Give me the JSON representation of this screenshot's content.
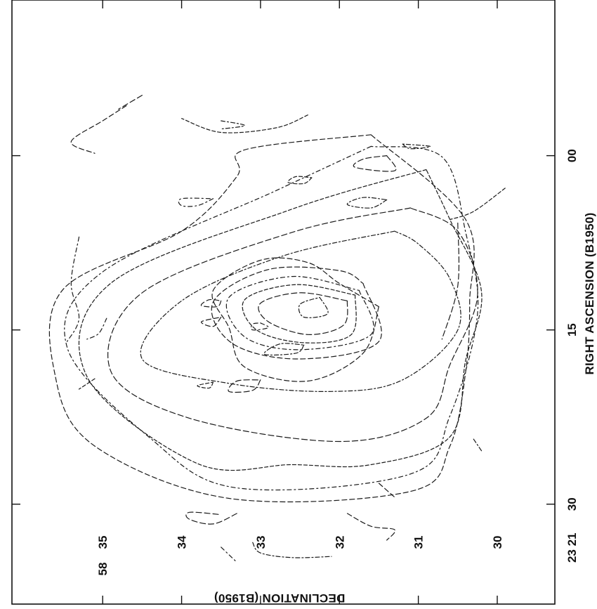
{
  "chart_data": {
    "type": "contour",
    "orientation": "rotated 90 degrees clockwise (x axis along right edge, y axis along bottom edge)",
    "xlabel": "RIGHT ASCENSION (B1950)",
    "ylabel": "DECLINATION (B1950)",
    "x_ticks": [
      {
        "value_s": 0,
        "label": "00",
        "prefix": ""
      },
      {
        "value_s": 15,
        "label": "15",
        "prefix": ""
      },
      {
        "value_s": 30,
        "label": "30",
        "prefix": "23 21"
      }
    ],
    "y_ticks": [
      {
        "value": 35,
        "label": "35",
        "prefix": "58"
      },
      {
        "value": 34,
        "label": "34",
        "prefix": ""
      },
      {
        "value": 33,
        "label": "33",
        "prefix": ""
      },
      {
        "value": 32,
        "label": "32",
        "prefix": ""
      },
      {
        "value": 31,
        "label": "31",
        "prefix": ""
      },
      {
        "value": 30,
        "label": "30",
        "prefix": ""
      }
    ],
    "xlim_s": [
      -13.4,
      38.6
    ],
    "ylim": [
      29.27,
      36.15
    ],
    "contour_style": "dashed",
    "peak": {
      "ra_s": 13,
      "dec": 32.3
    },
    "contours": [
      {
        "level": 1,
        "points": [
          [
            13,
            31.5
          ],
          [
            17,
            31.7
          ],
          [
            19.4,
            32.4
          ],
          [
            18.2,
            33.2
          ],
          [
            14.8,
            33.4
          ],
          [
            11.6,
            33.6
          ],
          [
            9,
            33
          ],
          [
            9.2,
            32.4
          ],
          [
            11,
            32
          ],
          [
            13,
            31.5
          ]
        ]
      },
      {
        "level": 1,
        "points": [
          [
            12.2,
            32.25
          ],
          [
            13.6,
            32.15
          ],
          [
            13.9,
            32.45
          ],
          [
            12.8,
            32.5
          ],
          [
            12.2,
            32.25
          ]
        ]
      },
      {
        "level": 1,
        "points": [
          [
            12.5,
            31.9
          ],
          [
            14.6,
            31.95
          ],
          [
            15.4,
            32.4
          ],
          [
            14.3,
            32.9
          ],
          [
            12.7,
            33.0
          ],
          [
            11.8,
            32.5
          ],
          [
            12.5,
            31.9
          ]
        ]
      },
      {
        "level": 1,
        "points": [
          [
            12,
            31.8
          ],
          [
            15.4,
            31.85
          ],
          [
            16.1,
            32.45
          ],
          [
            15.0,
            33.05
          ],
          [
            12.4,
            33.2
          ],
          [
            11.1,
            32.55
          ],
          [
            12,
            31.8
          ]
        ]
      },
      {
        "level": 1,
        "points": [
          [
            11.6,
            31.75
          ],
          [
            15.4,
            31.6
          ],
          [
            16.7,
            32.5
          ],
          [
            15.6,
            33.2
          ],
          [
            12.2,
            33.4
          ],
          [
            10.4,
            32.6
          ],
          [
            11.6,
            31.75
          ]
        ]
      },
      {
        "level": 1,
        "points": [
          [
            11,
            31.7
          ],
          [
            16,
            31.5
          ],
          [
            17.5,
            32.5
          ],
          [
            16.2,
            33.35
          ],
          [
            12.6,
            33.6
          ],
          [
            9.8,
            32.9
          ],
          [
            9.9,
            32.0
          ],
          [
            11,
            31.7
          ]
        ]
      },
      {
        "level": 1,
        "points": [
          [
            6.5,
            31.3
          ],
          [
            8.6,
            32.7
          ],
          [
            12.5,
            34
          ],
          [
            17.5,
            34.5
          ],
          [
            19.6,
            33.4
          ],
          [
            20.3,
            32.1
          ],
          [
            19.3,
            31.2
          ],
          [
            15.0,
            30.5
          ],
          [
            10.6,
            30.6
          ],
          [
            7.6,
            31.0
          ],
          [
            6.5,
            31.3
          ]
        ]
      },
      {
        "level": 1,
        "points": [
          [
            4.5,
            31.1
          ],
          [
            6.6,
            32.6
          ],
          [
            11.8,
            34.5
          ],
          [
            18.5,
            34.9
          ],
          [
            22.6,
            33.9
          ],
          [
            24.6,
            32.0
          ],
          [
            22.6,
            30.9
          ],
          [
            18.0,
            30.6
          ],
          [
            12,
            30.25
          ],
          [
            6.5,
            30.5
          ],
          [
            4.5,
            31.1
          ]
        ]
      },
      {
        "level": 1,
        "points": [
          [
            1.2,
            30.9
          ],
          [
            4.6,
            32.6
          ],
          [
            11,
            34.9
          ],
          [
            19,
            35.2
          ],
          [
            26.5,
            33.8
          ],
          [
            26.6,
            32.6
          ],
          [
            26.6,
            31.6
          ],
          [
            24.2,
            30.6
          ],
          [
            17.6,
            30.4
          ],
          [
            11.7,
            30.2
          ],
          [
            5.5,
            30.6
          ],
          [
            1.2,
            30.9
          ]
        ]
      },
      {
        "level": 1,
        "points": [
          [
            -0.8,
            31.6
          ],
          [
            3,
            32.8
          ],
          [
            10,
            35
          ],
          [
            16.5,
            35.45
          ],
          [
            24.3,
            34.4
          ],
          [
            28.6,
            33.3
          ],
          [
            27.4,
            31.1
          ],
          [
            22.4,
            30.6
          ],
          [
            13.6,
            30.25
          ],
          [
            6.6,
            30.4
          ],
          [
            0.1,
            30.7
          ],
          [
            -0.8,
            31.6
          ]
        ]
      },
      {
        "level": 1,
        "points": [
          [
            -1.8,
            31.6
          ],
          [
            -0.5,
            33.2
          ],
          [
            1.8,
            33.3
          ],
          [
            6.5,
            34
          ],
          [
            11.5,
            35.5
          ],
          [
            19,
            35.6
          ],
          [
            25,
            35.1
          ],
          [
            29.5,
            33.4
          ],
          [
            28.9,
            31.1
          ],
          [
            25,
            30.6
          ],
          [
            18.6,
            30.4
          ],
          [
            12.6,
            30.35
          ],
          [
            5.5,
            30.4
          ],
          [
            -1.8,
            31.6
          ]
        ]
      },
      {
        "level": 1,
        "points": [
          [
            3.8,
            31.4
          ],
          [
            4.5,
            31.6
          ],
          [
            4.2,
            31.9
          ],
          [
            3.6,
            31.7
          ],
          [
            3.8,
            31.4
          ]
        ]
      },
      {
        "level": 1,
        "points": [
          [
            0,
            31.4
          ],
          [
            1.3,
            31.3
          ],
          [
            1.0,
            31.8
          ],
          [
            0.3,
            31.7
          ],
          [
            0,
            31.4
          ]
        ]
      },
      {
        "level": 1,
        "points": [
          [
            1.9,
            32.35
          ],
          [
            2.4,
            32.45
          ],
          [
            2.3,
            32.65
          ],
          [
            1.8,
            32.55
          ],
          [
            1.9,
            32.35
          ]
        ]
      },
      {
        "level": 1,
        "points": [
          [
            3.7,
            33.6
          ],
          [
            4.3,
            33.8
          ],
          [
            4.3,
            34.0
          ],
          [
            3.7,
            34.0
          ],
          [
            3.7,
            33.6
          ]
        ]
      },
      {
        "level": 1,
        "points": [
          [
            12.5,
            33.5
          ],
          [
            13,
            33.55
          ],
          [
            12.9,
            33.75
          ],
          [
            12.4,
            33.65
          ],
          [
            12.5,
            33.5
          ]
        ]
      },
      {
        "level": 1,
        "points": [
          [
            16.3,
            32.45
          ],
          [
            17,
            32.55
          ],
          [
            17.1,
            32.95
          ],
          [
            16.2,
            32.75
          ],
          [
            16.3,
            32.45
          ]
        ]
      },
      {
        "level": 1,
        "points": [
          [
            19.3,
            33.0
          ],
          [
            20.2,
            33.1
          ],
          [
            20.3,
            33.4
          ],
          [
            19.4,
            33.3
          ],
          [
            19.3,
            33.0
          ]
        ]
      },
      {
        "level": 1,
        "points": [
          [
            19.5,
            33.6
          ],
          [
            20,
            33.65
          ],
          [
            19.8,
            33.8
          ],
          [
            19.5,
            33.6
          ]
        ]
      },
      {
        "level": 1,
        "points": [
          [
            14.4,
            33.0
          ],
          [
            14.8,
            32.9
          ],
          [
            15,
            33.1
          ],
          [
            14.5,
            33.1
          ],
          [
            14.4,
            33.0
          ]
        ]
      },
      {
        "level": 1,
        "points": [
          [
            13.9,
            33.5
          ],
          [
            14.7,
            33.6
          ],
          [
            14.3,
            33.75
          ],
          [
            13.9,
            33.5
          ]
        ]
      },
      {
        "level": 1,
        "points": [
          [
            -1,
            31.2
          ],
          [
            -0.6,
            31.1
          ],
          [
            -0.8,
            30.85
          ],
          [
            -1,
            31.2
          ]
        ]
      },
      {
        "level": 1,
        "points": [
          [
            30.8,
            33.3
          ],
          [
            31.7,
            33.6
          ],
          [
            31.3,
            33.9
          ],
          [
            30.7,
            33.9
          ],
          [
            30.9,
            33.5
          ]
        ]
      },
      {
        "level": 1,
        "points": [
          [
            -3.5,
            32.4
          ],
          [
            -2.4,
            32.8
          ],
          [
            -2.0,
            33.5
          ],
          [
            -3.2,
            34.0
          ]
        ]
      },
      {
        "level": 1,
        "points": [
          [
            7,
            35.3
          ],
          [
            11,
            35.4
          ],
          [
            14,
            35.3
          ],
          [
            16,
            35.45
          ]
        ]
      },
      {
        "level": 1,
        "points": [
          [
            -4.3,
            34.7
          ],
          [
            -3,
            35.0
          ],
          [
            -1.2,
            35.4
          ],
          [
            -0.2,
            35.1
          ]
        ]
      },
      {
        "level": 1,
        "points": [
          [
            -3,
            33.5
          ],
          [
            -2.6,
            33.2
          ],
          [
            -2.3,
            33.5
          ]
        ]
      },
      {
        "level": 1,
        "points": [
          [
            5.8,
            30.5
          ],
          [
            11.2,
            30.5
          ],
          [
            15.8,
            30.7
          ]
        ]
      },
      {
        "level": 1,
        "points": [
          [
            2.8,
            29.9
          ],
          [
            4.8,
            30.3
          ],
          [
            5.5,
            30.6
          ]
        ]
      },
      {
        "level": 1,
        "points": [
          [
            14,
            34.95
          ],
          [
            15.3,
            35.05
          ],
          [
            15.8,
            35.2
          ]
        ]
      },
      {
        "level": 1,
        "points": [
          [
            30.8,
            31.9
          ],
          [
            31.9,
            31.6
          ],
          [
            32.2,
            31.3
          ],
          [
            33.1,
            31.4
          ]
        ]
      },
      {
        "level": 1,
        "points": [
          [
            33.3,
            33.1
          ],
          [
            34.2,
            33.0
          ],
          [
            34.6,
            32.6
          ],
          [
            34.5,
            32.1
          ]
        ]
      },
      {
        "level": 1,
        "points": [
          [
            -5.2,
            34.5
          ],
          [
            -4,
            34.8
          ]
        ]
      },
      {
        "level": 1,
        "points": [
          [
            19.2,
            35.1
          ],
          [
            20.1,
            35.3
          ]
        ]
      },
      {
        "level": 1,
        "points": [
          [
            33.7,
            33.5
          ],
          [
            35,
            33.3
          ]
        ]
      },
      {
        "level": 1,
        "points": [
          [
            28.2,
            31.5
          ],
          [
            29.4,
            31.3
          ]
        ]
      },
      {
        "level": 1,
        "points": [
          [
            24.4,
            30.3
          ],
          [
            25.4,
            30.2
          ]
        ]
      }
    ]
  }
}
